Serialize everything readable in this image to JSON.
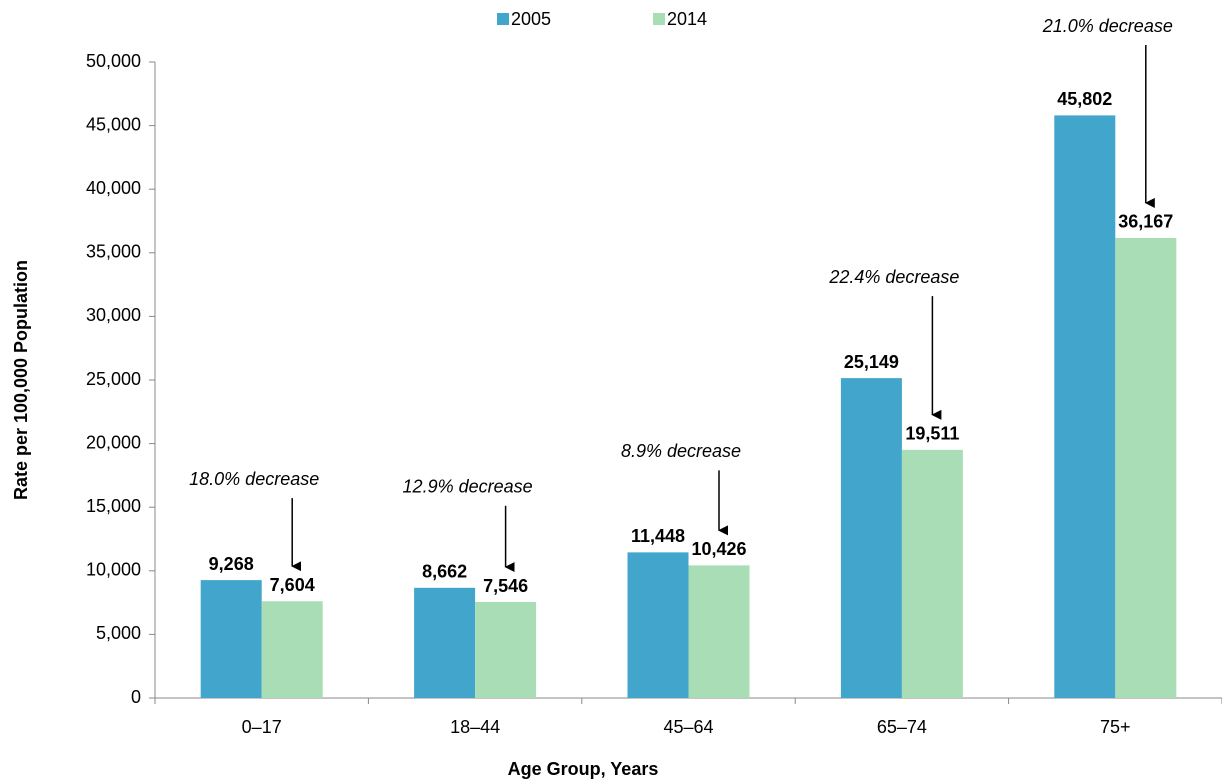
{
  "chart_data": {
    "type": "bar",
    "ylabel": "Rate per 100,000 Population",
    "xlabel": "Age Group, Years",
    "categories": [
      "0–17",
      "18–44",
      "45–64",
      "65–74",
      "75+"
    ],
    "series": [
      {
        "name": "2005",
        "color": "#42a5cb",
        "values": [
          9268,
          8662,
          11448,
          25149,
          45802
        ],
        "value_labels": [
          "9,268",
          "8,662",
          "11,448",
          "25,149",
          "45,802"
        ]
      },
      {
        "name": "2014",
        "color": "#a8ddb5",
        "values": [
          7604,
          7546,
          10426,
          19511,
          36167
        ],
        "value_labels": [
          "7,604",
          "7,546",
          "10,426",
          "19,511",
          "36,167"
        ]
      }
    ],
    "annotations": [
      "18.0% decrease",
      "12.9% decrease",
      "8.9% decrease",
      "22.4% decrease",
      "21.0% decrease"
    ],
    "ylim": [
      0,
      50000
    ],
    "yticks": [
      0,
      {
        "value": 5000,
        "label": "5,000"
      },
      {
        "value": 10000,
        "label": "10,000"
      },
      {
        "value": 15000,
        "label": "15,000"
      },
      {
        "value": 20000,
        "label": "20,000"
      },
      {
        "value": 25000,
        "label": "25,000"
      },
      {
        "value": 30000,
        "label": "30,000"
      },
      {
        "value": 35000,
        "label": "35,000"
      },
      {
        "value": 40000,
        "label": "40,000"
      },
      {
        "value": 45000,
        "label": "45,000"
      },
      {
        "value": 50000,
        "label": "50,000"
      }
    ],
    "legend": "top"
  }
}
